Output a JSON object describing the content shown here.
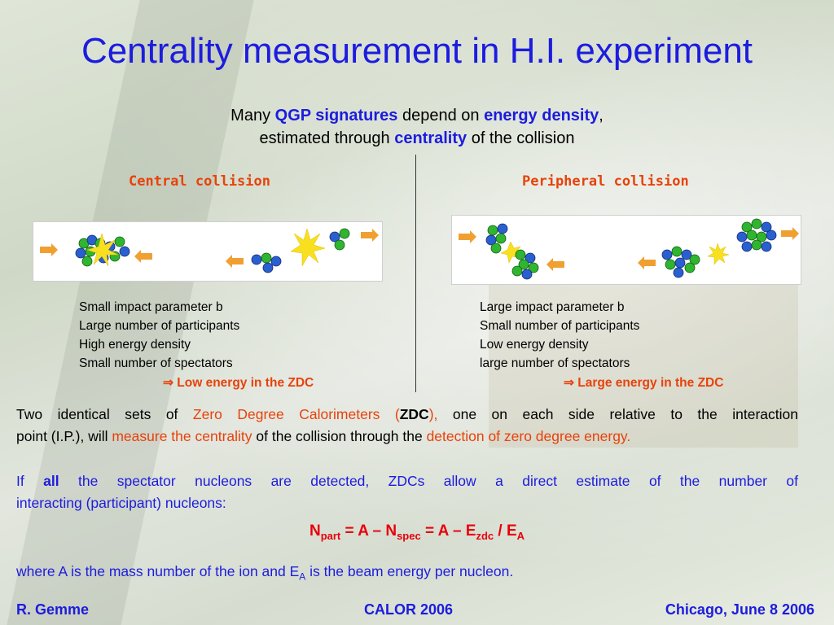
{
  "title": "Centrality measurement in H.I. experiment",
  "subtitle": {
    "l1_a": "Many ",
    "l1_b": "QGP signatures",
    "l1_c": " depend on ",
    "l1_d": "energy density",
    "l1_e": ",",
    "l2_a": "estimated through ",
    "l2_b": "centrality",
    "l2_c": " of the collision"
  },
  "left": {
    "heading": "Central collision",
    "items": [
      "Small impact parameter b",
      "Large number of participants",
      "High energy density",
      "Small number of spectators"
    ],
    "conclusion": "⇒ Low energy in the ZDC"
  },
  "right": {
    "heading": "Peripheral collision",
    "items": [
      "Large impact parameter b",
      "Small number of participants",
      "Low energy density",
      "large number of spectators"
    ],
    "conclusion": "⇒ Large energy in the ZDC"
  },
  "para1": {
    "a": "Two identical sets of ",
    "b": "Zero Degree Calorimeters (",
    "c": "ZDC",
    "d": "),",
    "e": " one on each side relative to the interaction",
    "f": "point (I.P.), will ",
    "g": "measure the centrality",
    "h": " of the collision through the ",
    "i": "detection of zero degree energy."
  },
  "para2": {
    "a": "If ",
    "b": "all",
    "c": " the spectator nucleons are detected, ZDCs allow a direct estimate of the number of",
    "d": "interacting (participant) nucleons:"
  },
  "formula": {
    "n1": "N",
    "s1": "part",
    "m1": " = A – N",
    "s2": "spec",
    "m2": " = A – E",
    "s3": "zdc",
    "m3": " / E",
    "s4": "A"
  },
  "para3": {
    "a": "where A is the mass number of the ion and E",
    "sub": "A",
    "b": " is the beam energy per nucleon."
  },
  "footer": {
    "author": "R. Gemme",
    "conference": "CALOR 2006",
    "place_date": "Chicago, June 8 2006"
  },
  "colors": {
    "title_blue": "#1c1cde",
    "accent_red": "#e8420a",
    "proton_green": "#2fb52f",
    "neutron_blue": "#2a5fd0",
    "arrow_orange": "#f0a030",
    "flash_yellow": "#f8e020"
  }
}
